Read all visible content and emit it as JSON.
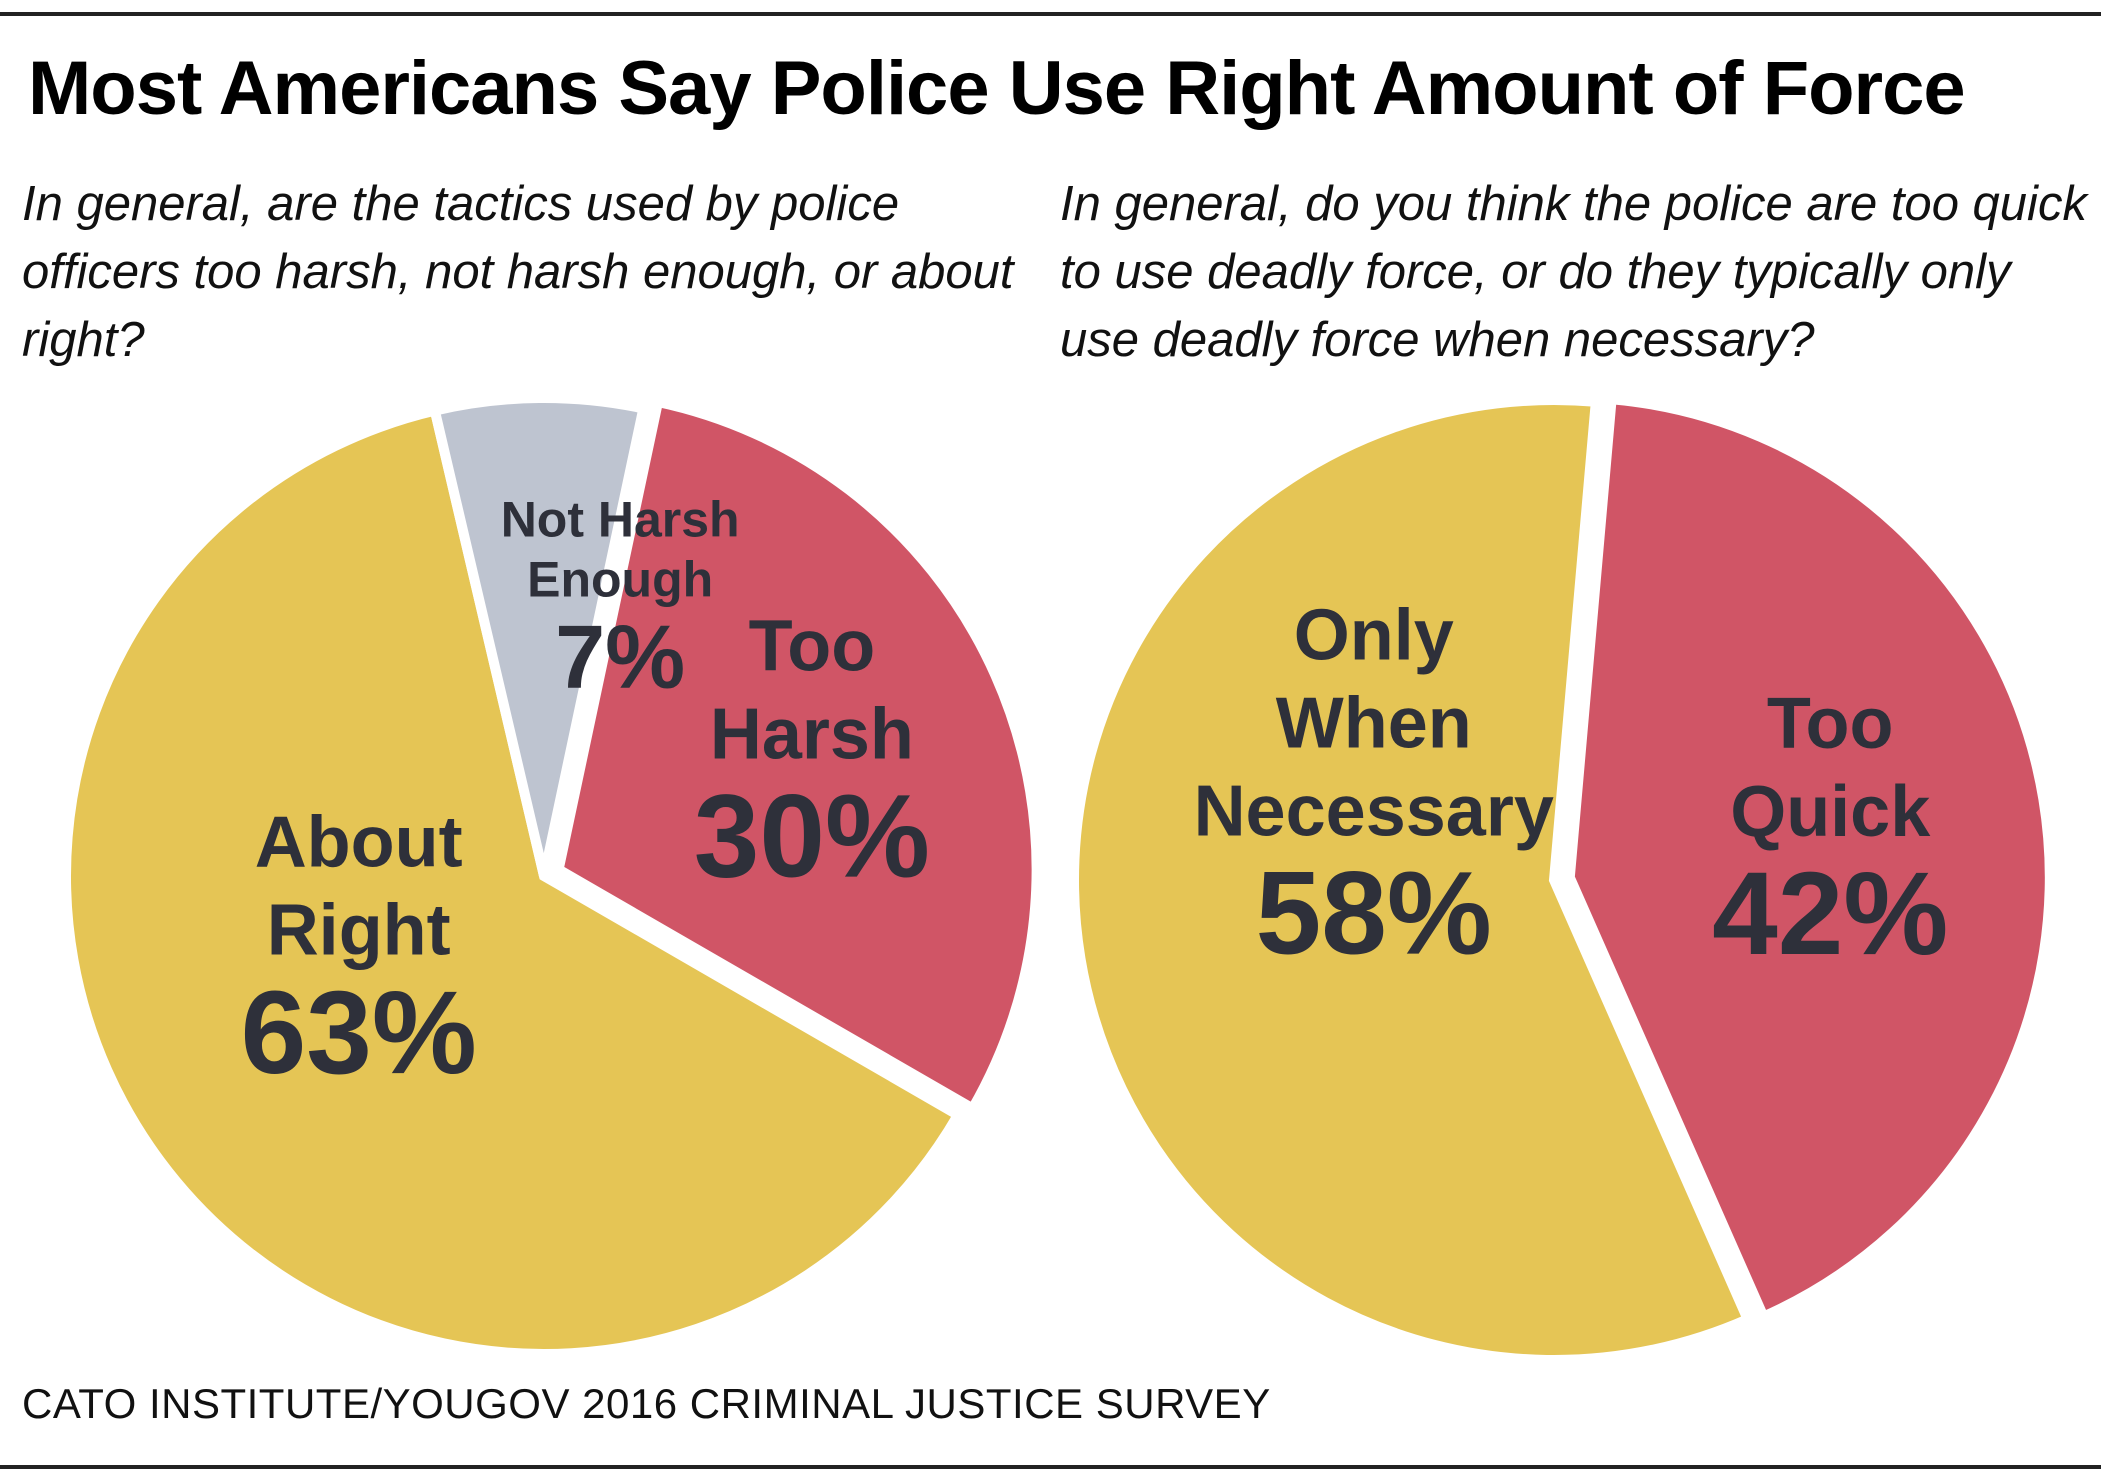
{
  "title": "Most Americans Say Police Use Right Amount of Force",
  "source": "CATO INSTITUTE/YOUGOV 2016 CRIMINAL JUSTICE SURVEY",
  "colors": {
    "red": "#d05566",
    "yellow": "#e5c555",
    "gray": "#bec4d0",
    "label_text": "#2e303a"
  },
  "chart_data": [
    {
      "type": "pie",
      "title": "In general, are the tactics used by police officers too harsh, not harsh enough, or about right?",
      "slices": [
        {
          "label": "Too Harsh",
          "label_lines": [
            "Too",
            "Harsh"
          ],
          "value": 30,
          "value_label": "30%",
          "color": "#d05566",
          "exploded": true
        },
        {
          "label": "About Right",
          "label_lines": [
            "About",
            "Right"
          ],
          "value": 63,
          "value_label": "63%",
          "color": "#e5c555",
          "exploded": false
        },
        {
          "label": "Not Harsh Enough",
          "label_lines": [
            "Not Harsh",
            "Enough"
          ],
          "value": 7,
          "value_label": "7%",
          "color": "#bec4d0",
          "exploded": false
        }
      ]
    },
    {
      "type": "pie",
      "title": "In general, do you think the police are too quick to use deadly force, or do they typically only use deadly force when necessary?",
      "slices": [
        {
          "label": "Too Quick",
          "label_lines": [
            "Too",
            "Quick"
          ],
          "value": 42,
          "value_label": "42%",
          "color": "#d05566",
          "exploded": true
        },
        {
          "label": "Only When Necessary",
          "label_lines": [
            "Only",
            "When",
            "Necessary"
          ],
          "value": 58,
          "value_label": "58%",
          "color": "#e5c555",
          "exploded": false
        }
      ]
    }
  ]
}
